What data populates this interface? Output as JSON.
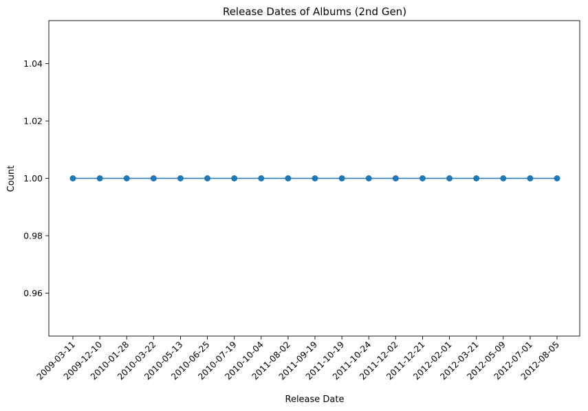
{
  "chart_data": {
    "type": "line",
    "title": "Release Dates of Albums (2nd Gen)",
    "xlabel": "Release Date",
    "ylabel": "Count",
    "categories": [
      "2009-03-11",
      "2009-12-10",
      "2010-01-28",
      "2010-03-22",
      "2010-05-13",
      "2010-06-25",
      "2010-07-19",
      "2010-10-04",
      "2011-08-02",
      "2011-09-19",
      "2011-10-19",
      "2011-10-24",
      "2011-12-02",
      "2011-12-21",
      "2012-02-01",
      "2012-03-21",
      "2012-05-09",
      "2012-07-01",
      "2012-08-05"
    ],
    "series": [
      {
        "values": [
          1,
          1,
          1,
          1,
          1,
          1,
          1,
          1,
          1,
          1,
          1,
          1,
          1,
          1,
          1,
          1,
          1,
          1,
          1
        ]
      }
    ],
    "ylim": [
      0.945,
      1.055
    ],
    "yticks": [
      "0.96",
      "0.98",
      "1.00",
      "1.02",
      "1.04"
    ],
    "grid": false,
    "legend": "none",
    "colors": {
      "line": "#1f77b4",
      "marker": "#1f77b4",
      "axes": "#000000"
    }
  }
}
